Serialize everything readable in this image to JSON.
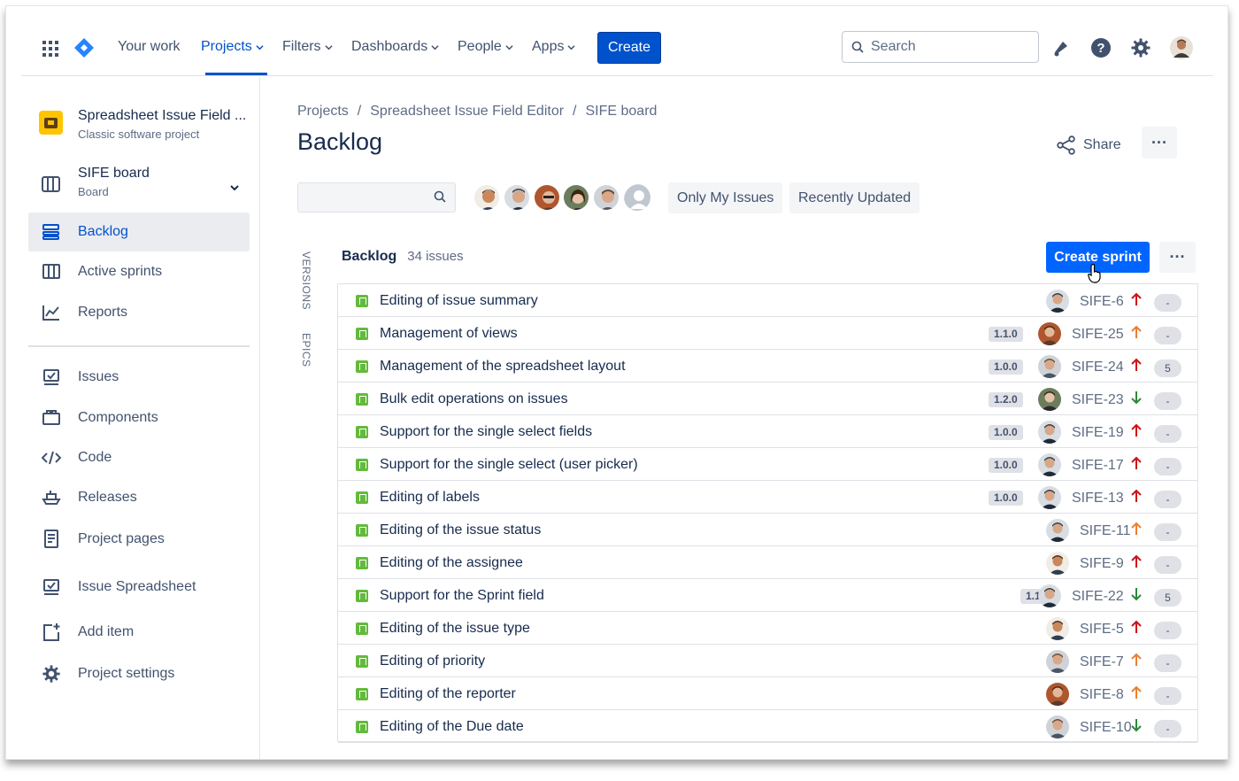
{
  "nav": {
    "your_work": "Your work",
    "projects": "Projects",
    "filters": "Filters",
    "dashboards": "Dashboards",
    "people": "People",
    "apps": "Apps",
    "create": "Create",
    "search_placeholder": "Search"
  },
  "sidebar": {
    "project_name": "Spreadsheet Issue Field ...",
    "project_type": "Classic software project",
    "board_name": "SIFE board",
    "board_sub": "Board",
    "items": [
      {
        "label": "Backlog",
        "icon": "backlog-icon",
        "active": true
      },
      {
        "label": "Active sprints",
        "icon": "columns-icon"
      },
      {
        "label": "Reports",
        "icon": "chart-icon"
      },
      {
        "label": "Issues",
        "icon": "issues-icon"
      },
      {
        "label": "Components",
        "icon": "components-icon"
      },
      {
        "label": "Code",
        "icon": "code-icon"
      },
      {
        "label": "Releases",
        "icon": "ship-icon"
      },
      {
        "label": "Project pages",
        "icon": "page-icon"
      },
      {
        "label": "Issue Spreadsheet",
        "icon": "spreadsheet-icon"
      },
      {
        "label": "Add item",
        "icon": "add-item-icon"
      },
      {
        "label": "Project settings",
        "icon": "gear-icon"
      }
    ]
  },
  "breadcrumb": [
    "Projects",
    "Spreadsheet Issue Field Editor",
    "SIFE board"
  ],
  "page_title": "Backlog",
  "share_label": "Share",
  "quick_filters": [
    "Only My Issues",
    "Recently Updated"
  ],
  "side_tabs": [
    "VERSIONS",
    "EPICS"
  ],
  "backlog": {
    "title": "Backlog",
    "count": "34 issues",
    "create_sprint": "Create sprint",
    "issues": [
      {
        "summary": "Editing of issue summary",
        "version": "",
        "key": "SIFE-6",
        "priority": "high",
        "estimate": "-"
      },
      {
        "summary": "Management of views",
        "version": "1.1.0",
        "key": "SIFE-25",
        "priority": "medium",
        "estimate": "-"
      },
      {
        "summary": "Management of the spreadsheet layout",
        "version": "1.0.0",
        "key": "SIFE-24",
        "priority": "high",
        "estimate": "5"
      },
      {
        "summary": "Bulk edit operations on issues",
        "version": "1.2.0",
        "key": "SIFE-23",
        "priority": "low",
        "estimate": "-"
      },
      {
        "summary": "Support for the single select fields",
        "version": "1.0.0",
        "key": "SIFE-19",
        "priority": "high",
        "estimate": "-"
      },
      {
        "summary": "Support for the single select (user picker)",
        "version": "1.0.0",
        "key": "SIFE-17",
        "priority": "high",
        "estimate": "-"
      },
      {
        "summary": "Editing of labels",
        "version": "1.0.0",
        "key": "SIFE-13",
        "priority": "high",
        "estimate": "-"
      },
      {
        "summary": "Editing of the issue status",
        "version": "",
        "key": "SIFE-11",
        "priority": "medium",
        "estimate": "-"
      },
      {
        "summary": "Editing of the assignee",
        "version": "",
        "key": "SIFE-9",
        "priority": "high",
        "estimate": "-"
      },
      {
        "summary": "Support for the Sprint field",
        "version": "1.1.0",
        "key": "SIFE-22",
        "priority": "low",
        "estimate": "5"
      },
      {
        "summary": "Editing of the issue type",
        "version": "",
        "key": "SIFE-5",
        "priority": "high",
        "estimate": "-"
      },
      {
        "summary": "Editing of priority",
        "version": "",
        "key": "SIFE-7",
        "priority": "medium",
        "estimate": "-"
      },
      {
        "summary": "Editing of the reporter",
        "version": "",
        "key": "SIFE-8",
        "priority": "medium",
        "estimate": "-"
      },
      {
        "summary": "Editing of the Due date",
        "version": "",
        "key": "SIFE-10",
        "priority": "low",
        "estimate": "-"
      }
    ]
  },
  "colors": {
    "brand": "#0052cc",
    "create_sprint": "#0065ff",
    "story": "#63ba3c",
    "priority_high": "#cd1317",
    "priority_medium": "#e97f33",
    "priority_low": "#2d8738"
  }
}
